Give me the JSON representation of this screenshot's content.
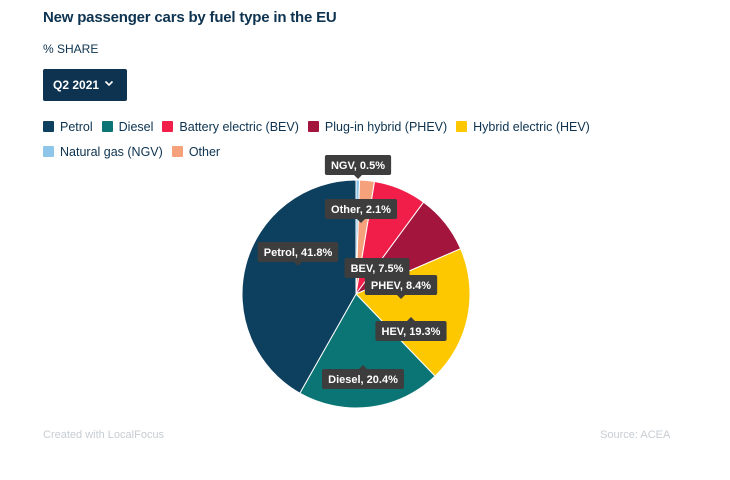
{
  "title": "New passenger cars by fuel type in the EU",
  "subtitle": "% SHARE",
  "dropdown": {
    "selected": "Q2 2021",
    "icon": "chevron-down-icon"
  },
  "footer": {
    "credit": "Created with LocalFocus",
    "source": "Source: ACEA"
  },
  "chart_data": {
    "type": "pie",
    "title": "New passenger cars by fuel type in the EU",
    "subtitle": "% SHARE",
    "unit": "%",
    "legend_placement": "top",
    "slices": [
      {
        "name": "Natural gas (NGV)",
        "label": "NGV, 0.5%",
        "value": 0.5,
        "color": "#8ec6ea"
      },
      {
        "name": "Other",
        "label": "Other, 2.1%",
        "value": 2.1,
        "color": "#f4a17c"
      },
      {
        "name": "Battery electric (BEV)",
        "label": "BEV, 7.5%",
        "value": 7.5,
        "color": "#f21e4a"
      },
      {
        "name": "Plug-in hybrid (PHEV)",
        "label": "PHEV, 8.4%",
        "value": 8.4,
        "color": "#a3153d"
      },
      {
        "name": "Hybrid electric (HEV)",
        "label": "HEV, 19.3%",
        "value": 19.3,
        "color": "#fdc800"
      },
      {
        "name": "Diesel",
        "label": "Diesel, 20.4%",
        "value": 20.4,
        "color": "#0b7575"
      },
      {
        "name": "Petrol",
        "label": "Petrol, 41.8%",
        "value": 41.8,
        "color": "#0d3f5f"
      }
    ],
    "legend": [
      {
        "name": "Petrol",
        "color": "#0d3f5f"
      },
      {
        "name": "Diesel",
        "color": "#0b7575"
      },
      {
        "name": "Battery electric (BEV)",
        "color": "#f21e4a"
      },
      {
        "name": "Plug-in hybrid (PHEV)",
        "color": "#a3153d"
      },
      {
        "name": "Hybrid electric (HEV)",
        "color": "#fdc800"
      },
      {
        "name": "Natural gas (NGV)",
        "color": "#8ec6ea"
      },
      {
        "name": "Other",
        "color": "#f4a17c"
      }
    ]
  }
}
